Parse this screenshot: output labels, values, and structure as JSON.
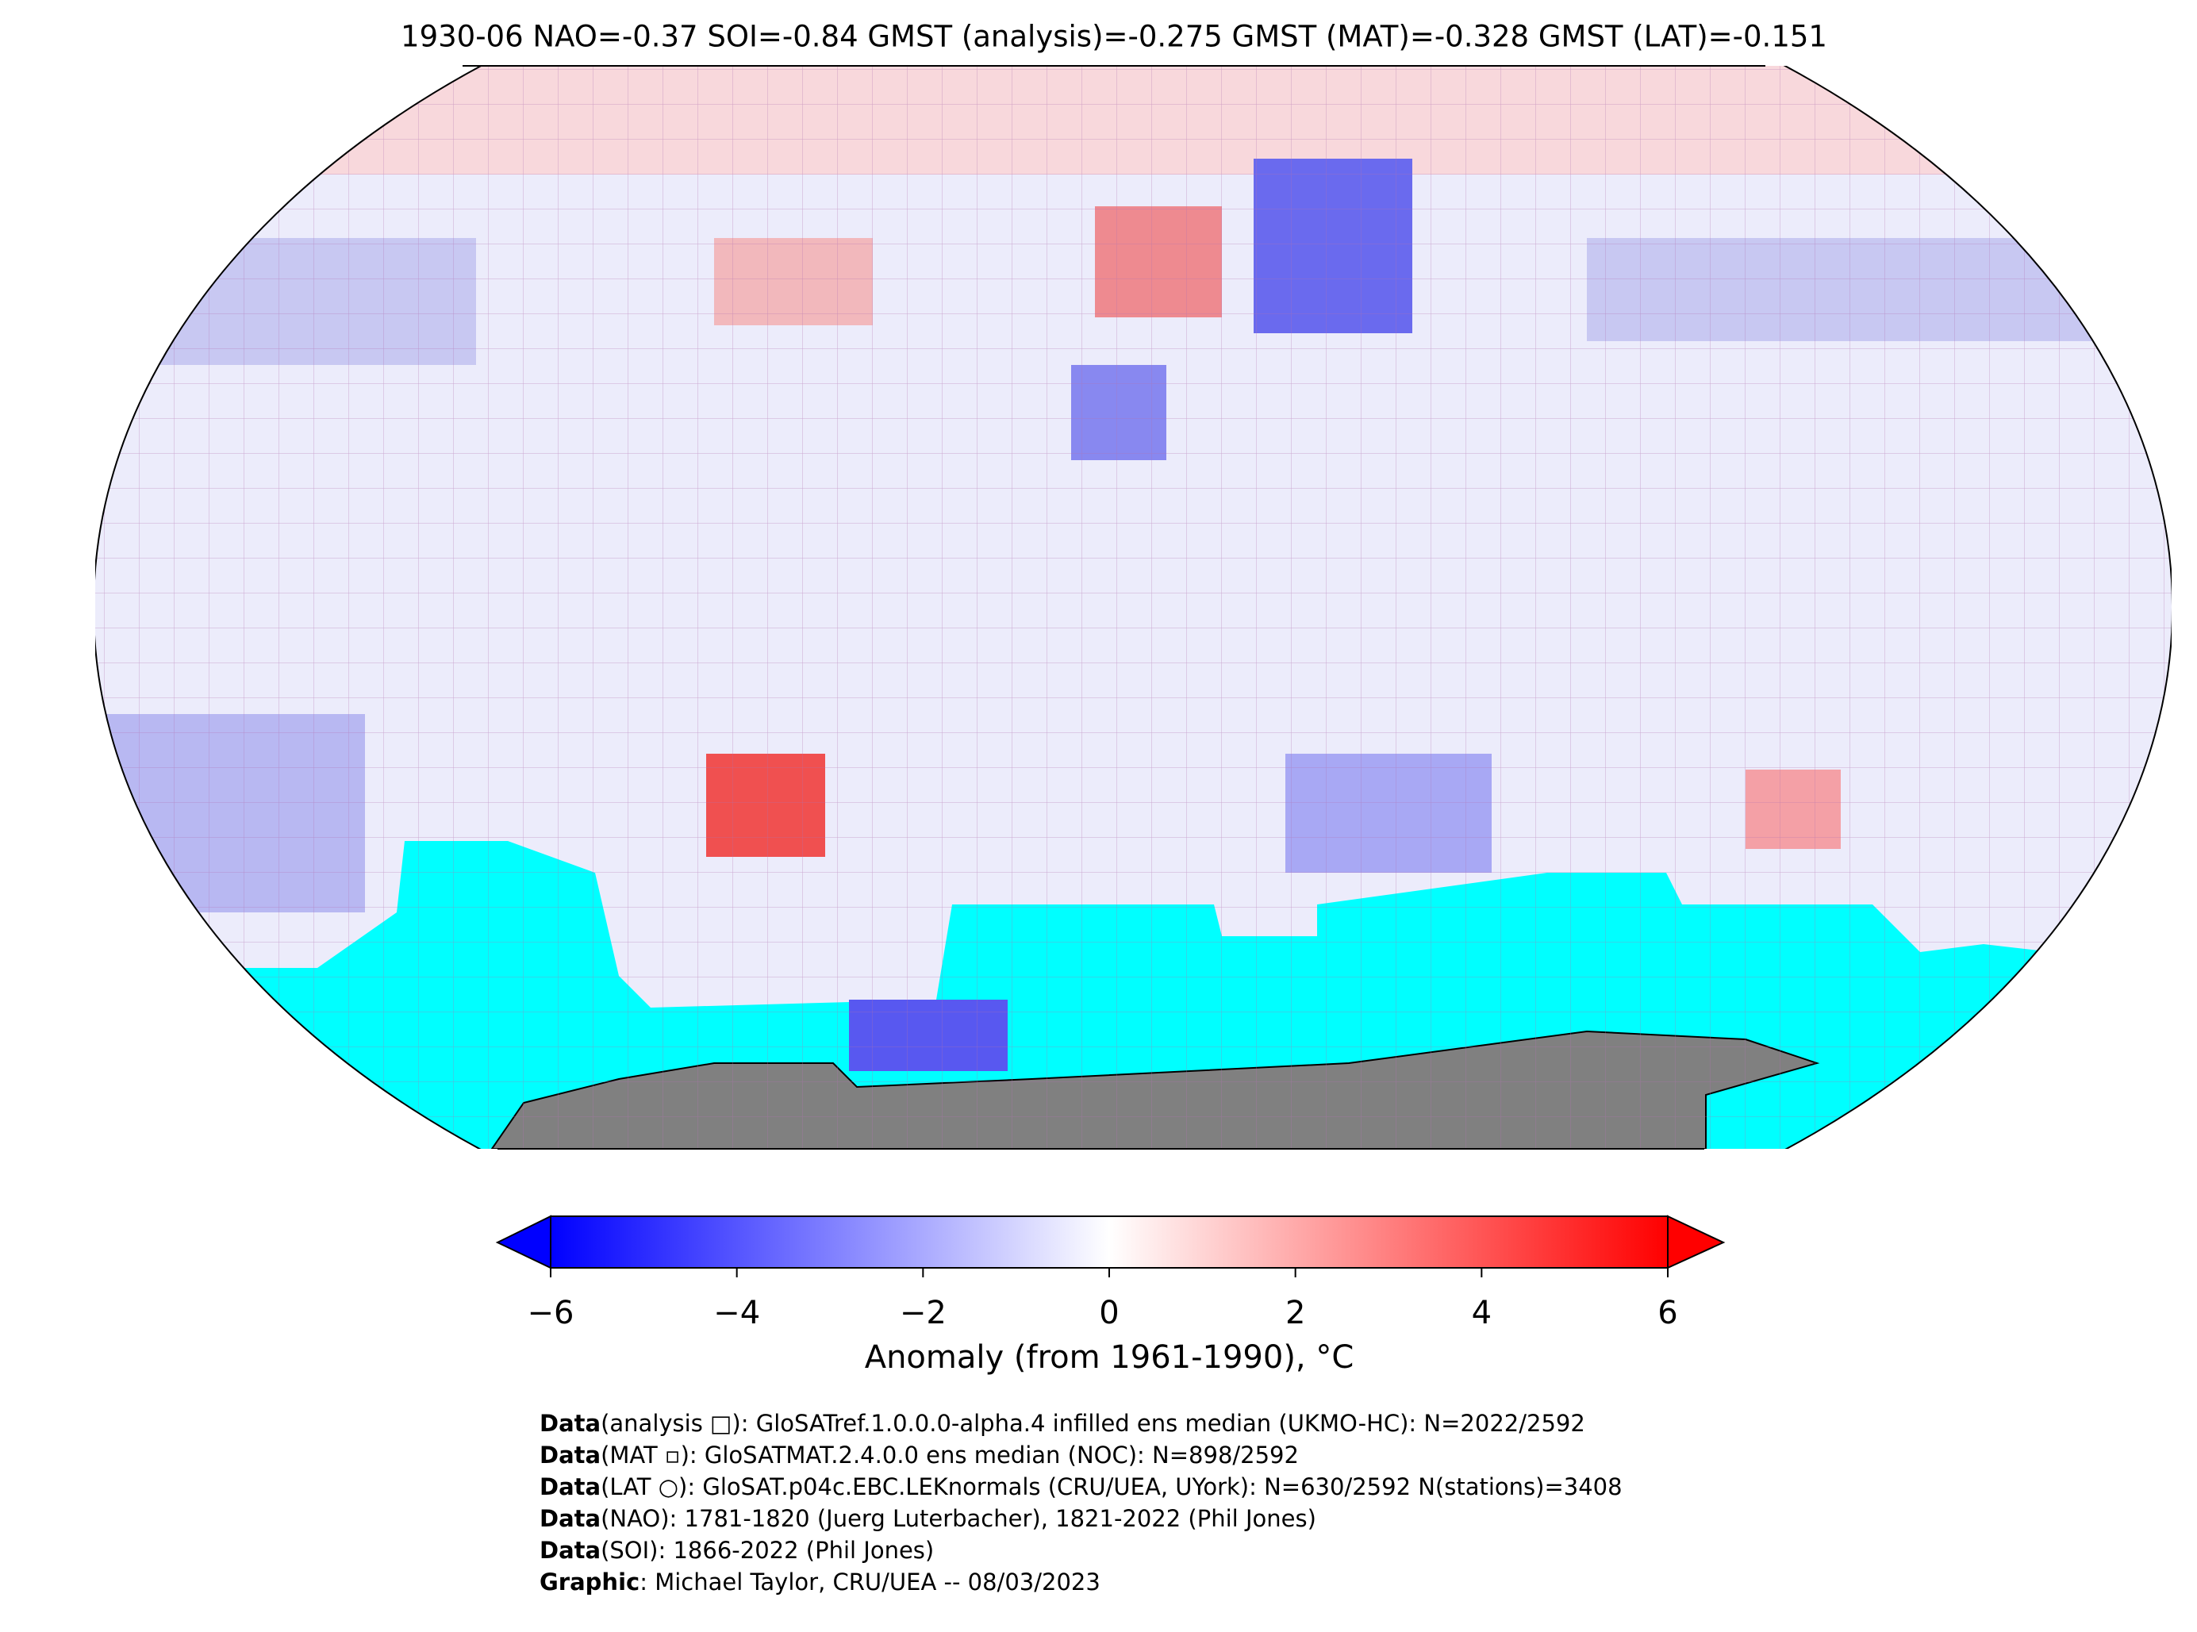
{
  "title": "1930-06 NAO=-0.37 SOI=-0.84 GMST (analysis)=-0.275 GMST (MAT)=-0.328 GMST (LAT)=-0.151",
  "colorbar": {
    "label": "Anomaly (from 1961-1990), °C",
    "clim": [
      -6,
      6
    ],
    "ticks": [
      {
        "value": -6,
        "label": "−6"
      },
      {
        "value": -4,
        "label": "−4"
      },
      {
        "value": -2,
        "label": "−2"
      },
      0,
      2,
      4,
      6
    ]
  },
  "footer": [
    {
      "label": "Data",
      "text": "(analysis □): GloSATref.1.0.0.0-alpha.4 infilled ens median (UKMO-HC): N=2022/2592"
    },
    {
      "label": "Data",
      "text": "(MAT ▫): GloSATMAT.2.4.0.0 ens median (NOC): N=898/2592"
    },
    {
      "label": "Data",
      "text": "(LAT ○): GloSAT.p04c.EBC.LEKnormals (CRU/UEA, UYork): N=630/2592 N(stations)=3408"
    },
    {
      "label": "Data",
      "text": "(NAO): 1781-1820 (Juerg Luterbacher), 1821-2022 (Phil Jones)"
    },
    {
      "label": "Data",
      "text": "(SOI): 1866-2022 (Phil Jones)"
    },
    {
      "label": "Graphic",
      "text": ": Michael Taylor, CRU/UEA -- 08/03/2023"
    }
  ]
}
